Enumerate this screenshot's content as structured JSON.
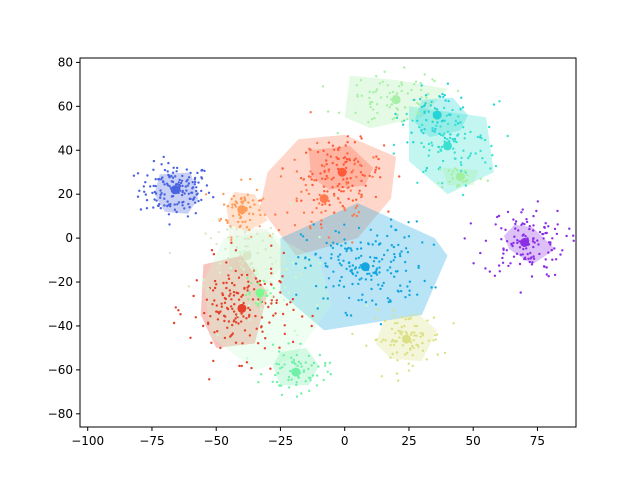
{
  "chart_data": {
    "type": "scatter",
    "title": "",
    "xlabel": "",
    "ylabel": "",
    "xlim": [
      -103,
      90
    ],
    "ylim": [
      -86,
      82
    ],
    "xticks": [
      -100,
      -75,
      -50,
      -25,
      0,
      25,
      50,
      75
    ],
    "yticks": [
      -80,
      -60,
      -40,
      -20,
      0,
      20,
      40,
      60,
      80
    ],
    "xtick_labels": [
      "−100",
      "−75",
      "−50",
      "−25",
      "0",
      "25",
      "50",
      "75"
    ],
    "ytick_labels": [
      "−80",
      "−60",
      "−40",
      "−20",
      "0",
      "20",
      "40",
      "60",
      "80"
    ],
    "grid": false,
    "legend": "none",
    "clusters": [
      {
        "color": "#4a63e0",
        "center": [
          -66,
          22
        ],
        "spread": [
          7,
          6
        ],
        "n": 150,
        "hull": [
          [
            -72,
            29
          ],
          [
            -60,
            30
          ],
          [
            -57,
            18
          ],
          [
            -61,
            11
          ],
          [
            -70,
            12
          ],
          [
            -74,
            20
          ]
        ]
      },
      {
        "color": "#ff9c58",
        "center": [
          -40,
          13
        ],
        "spread": [
          4,
          6
        ],
        "n": 70,
        "hull": [
          [
            -43,
            21
          ],
          [
            -35,
            20
          ],
          [
            -30,
            8
          ],
          [
            -38,
            3
          ],
          [
            -45,
            6
          ],
          [
            -46,
            14
          ]
        ]
      },
      {
        "color": "#ff5a3a",
        "center": [
          -1,
          30
        ],
        "spread": [
          8,
          7
        ],
        "n": 110,
        "hull": [
          [
            -14,
            40
          ],
          [
            2,
            42
          ],
          [
            11,
            32
          ],
          [
            8,
            24
          ],
          [
            -6,
            22
          ],
          [
            -13,
            28
          ]
        ]
      },
      {
        "color": "#ff7a4e",
        "center": [
          -8,
          18
        ],
        "spread": [
          12,
          12
        ],
        "n": 70,
        "hull": [
          [
            -18,
            45
          ],
          [
            0,
            47
          ],
          [
            20,
            37
          ],
          [
            18,
            18
          ],
          [
            5,
            0
          ],
          [
            -19,
            -8
          ],
          [
            -33,
            14
          ],
          [
            -30,
            30
          ]
        ]
      },
      {
        "color": "#a8f0a8",
        "center": [
          20,
          63
        ],
        "spread": [
          10,
          6
        ],
        "n": 80,
        "hull": [
          [
            2,
            74
          ],
          [
            20,
            72
          ],
          [
            40,
            68
          ],
          [
            30,
            55
          ],
          [
            10,
            50
          ],
          [
            0,
            55
          ]
        ]
      },
      {
        "color": "#26d4d8",
        "center": [
          36,
          56
        ],
        "spread": [
          7,
          6
        ],
        "n": 60,
        "hull": [
          [
            30,
            63
          ],
          [
            42,
            64
          ],
          [
            48,
            56
          ],
          [
            45,
            49
          ],
          [
            33,
            46
          ],
          [
            27,
            53
          ]
        ]
      },
      {
        "color": "#3ae0d0",
        "center": [
          40,
          42
        ],
        "spread": [
          10,
          10
        ],
        "n": 90,
        "hull": [
          [
            25,
            60
          ],
          [
            55,
            55
          ],
          [
            58,
            30
          ],
          [
            40,
            20
          ],
          [
            25,
            35
          ]
        ]
      },
      {
        "color": "#a0f0a0",
        "center": [
          45,
          28
        ],
        "spread": [
          5,
          3
        ],
        "n": 25,
        "hull": [
          [
            38,
            32
          ],
          [
            52,
            31
          ],
          [
            50,
            24
          ],
          [
            40,
            24
          ]
        ]
      },
      {
        "color": "#8a2ee6",
        "center": [
          70,
          -2
        ],
        "spread": [
          8,
          8
        ],
        "n": 130,
        "hull": [
          [
            66,
            6
          ],
          [
            73,
            5
          ],
          [
            82,
            -5
          ],
          [
            73,
            -12
          ],
          [
            64,
            -5
          ],
          [
            62,
            1
          ]
        ]
      },
      {
        "color": "#15a6e0",
        "center": [
          8,
          -13
        ],
        "spread": [
          12,
          10
        ],
        "n": 180,
        "hull": [
          [
            -25,
            0
          ],
          [
            5,
            16
          ],
          [
            35,
            0
          ],
          [
            40,
            -8
          ],
          [
            30,
            -35
          ],
          [
            -8,
            -42
          ],
          [
            -25,
            -25
          ]
        ]
      },
      {
        "color": "#dce084",
        "center": [
          24,
          -46
        ],
        "spread": [
          7,
          6
        ],
        "n": 90,
        "hull": [
          [
            15,
            -38
          ],
          [
            28,
            -34
          ],
          [
            36,
            -42
          ],
          [
            30,
            -56
          ],
          [
            18,
            -55
          ],
          [
            12,
            -48
          ]
        ]
      },
      {
        "color": "#d8e8c8",
        "center": [
          -38,
          -8
        ],
        "spread": [
          8,
          8
        ],
        "n": 60,
        "hull": [
          [
            -45,
            5
          ],
          [
            -30,
            4
          ],
          [
            -22,
            -10
          ],
          [
            -30,
            -20
          ],
          [
            -45,
            -15
          ]
        ]
      },
      {
        "color": "#e4402a",
        "center": [
          -40,
          -32
        ],
        "spread": [
          10,
          11
        ],
        "n": 170,
        "hull": [
          [
            -55,
            -12
          ],
          [
            -40,
            -8
          ],
          [
            -30,
            -25
          ],
          [
            -35,
            -48
          ],
          [
            -50,
            -50
          ],
          [
            -56,
            -35
          ]
        ]
      },
      {
        "color": "#c8fcd0",
        "center": [
          -33,
          -25
        ],
        "spread": [
          14,
          14
        ],
        "n": 40,
        "hull": [
          [
            -47,
            0
          ],
          [
            -30,
            3
          ],
          [
            -10,
            -10
          ],
          [
            -5,
            -30
          ],
          [
            -20,
            -55
          ],
          [
            -35,
            -60
          ],
          [
            -52,
            -45
          ],
          [
            -55,
            -20
          ]
        ]
      },
      {
        "color": "#70f0a8",
        "center": [
          -19,
          -61
        ],
        "spread": [
          6,
          5
        ],
        "n": 70,
        "hull": [
          [
            -25,
            -52
          ],
          [
            -15,
            -50
          ],
          [
            -10,
            -58
          ],
          [
            -14,
            -67
          ],
          [
            -25,
            -67
          ],
          [
            -28,
            -58
          ]
        ]
      },
      {
        "color": "#7cf890",
        "center": [
          -33,
          -25
        ],
        "spread": [
          4,
          4
        ],
        "n": 20,
        "hull": []
      }
    ]
  },
  "figure": {
    "background": "#ffffff",
    "hull_alpha": 0.3,
    "point_size": 1.2,
    "center_size": 4.5
  }
}
